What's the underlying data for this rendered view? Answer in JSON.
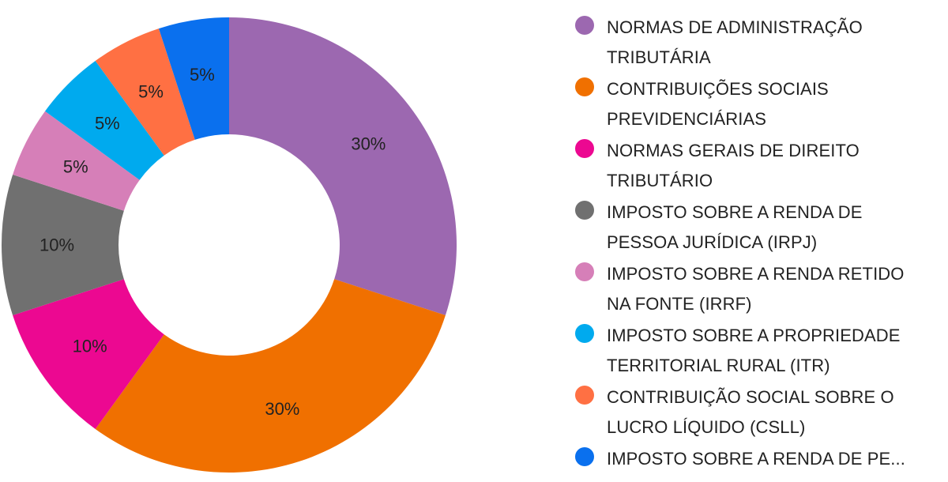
{
  "chart_data": {
    "type": "pie",
    "donut": true,
    "legend_position": "right",
    "slices": [
      {
        "label": "NORMAS DE ADMINISTRAÇÃO TRIBUTÁRIA",
        "legend_lines": [
          "NORMAS DE ADMINISTRAÇÃO",
          "TRIBUTÁRIA"
        ],
        "value": 30,
        "display": "30%",
        "color": "#9c68b0"
      },
      {
        "label": "CONTRIBUIÇÕES SOCIAIS PREVIDENCIÁRIAS",
        "legend_lines": [
          "CONTRIBUIÇÕES SOCIAIS",
          "PREVIDENCIÁRIAS"
        ],
        "value": 30,
        "display": "30%",
        "color": "#f07000"
      },
      {
        "label": "NORMAS GERAIS DE DIREITO TRIBUTÁRIO",
        "legend_lines": [
          "NORMAS GERAIS DE DIREITO",
          "TRIBUTÁRIO"
        ],
        "value": 10,
        "display": "10%",
        "color": "#ec0891"
      },
      {
        "label": "IMPOSTO SOBRE A RENDA DE PESSOA JURÍDICA (IRPJ)",
        "legend_lines": [
          "IMPOSTO SOBRE A RENDA DE",
          "PESSOA JURÍDICA (IRPJ)"
        ],
        "value": 10,
        "display": "10%",
        "color": "#707070"
      },
      {
        "label": "IMPOSTO SOBRE A RENDA RETIDO NA FONTE (IRRF)",
        "legend_lines": [
          "IMPOSTO SOBRE A RENDA RETIDO",
          "NA FONTE (IRRF)"
        ],
        "value": 5,
        "display": "5%",
        "color": "#d67fb8"
      },
      {
        "label": "IMPOSTO SOBRE A PROPRIEDADE TERRITORIAL RURAL (ITR)",
        "legend_lines": [
          "IMPOSTO SOBRE A PROPRIEDADE",
          "TERRITORIAL RURAL (ITR)"
        ],
        "value": 5,
        "display": "5%",
        "color": "#00aaee"
      },
      {
        "label": "CONTRIBUIÇÃO SOCIAL SOBRE O LUCRO LÍQUIDO (CSLL)",
        "legend_lines": [
          "CONTRIBUIÇÃO SOCIAL SOBRE O",
          "LUCRO LÍQUIDO (CSLL)"
        ],
        "value": 5,
        "display": "5%",
        "color": "#ff7043"
      },
      {
        "label": "IMPOSTO SOBRE A RENDA DE PE...",
        "legend_lines": [
          "IMPOSTO SOBRE A RENDA DE PE..."
        ],
        "value": 5,
        "display": "5%",
        "color": "#0a70ee"
      }
    ]
  }
}
